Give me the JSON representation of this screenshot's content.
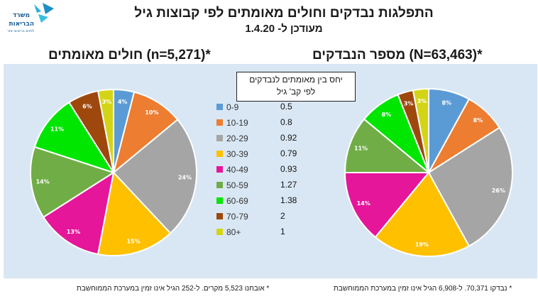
{
  "header": {
    "title": "התפלגות נבדקים וחולים מאומתים לפי קבוצות גיל",
    "subtitle": "מעודכן ל- 1.4.20",
    "logo_text_line1": "משרד",
    "logo_text_line2": "הבריאות",
    "logo_text_line3": "לחיים בריאים יותר"
  },
  "ratio_box": {
    "line1": "יחס בין מאומתים לנבדקים",
    "line2": "לפי קב' גיל"
  },
  "legend": [
    {
      "label": "0-9",
      "ratio": "0.5",
      "color": "#5b9bd5"
    },
    {
      "label": "10-19",
      "ratio": "0.8",
      "color": "#ed7d31"
    },
    {
      "label": "20-29",
      "ratio": "0.92",
      "color": "#a5a5a5"
    },
    {
      "label": "30-39",
      "ratio": "0.79",
      "color": "#ffc000"
    },
    {
      "label": "40-49",
      "ratio": "0.93",
      "color": "#e6169a"
    },
    {
      "label": "50-59",
      "ratio": "1.27",
      "color": "#70ad47"
    },
    {
      "label": "60-69",
      "ratio": "1.38",
      "color": "#00e600"
    },
    {
      "label": "70-79",
      "ratio": "2",
      "color": "#9e480e"
    },
    {
      "label": "80+",
      "ratio": "1",
      "color": "#d4d416"
    }
  ],
  "footnotes": {
    "left": "* אובחנו 5,523 מקרים. ל-252 הגיל אינו זמין במערכת הממוחשבת",
    "right": "* נבדקו 70,371. ל-6,908 הגיל אינו זמין במערכת הממוחשבת"
  },
  "chart_data": [
    {
      "type": "pie",
      "title": "חולים מאומתים (n=5,271)*",
      "categories": [
        "0-9",
        "10-19",
        "20-29",
        "30-39",
        "40-49",
        "50-59",
        "60-69",
        "70-79",
        "80+"
      ],
      "values": [
        4,
        10,
        24,
        15,
        13,
        14,
        11,
        6,
        3
      ],
      "value_labels": [
        "4%",
        "10%",
        "24%",
        "15%",
        "13%",
        "14%",
        "11%",
        "6%",
        "3%"
      ],
      "colors": [
        "#5b9bd5",
        "#ed7d31",
        "#a5a5a5",
        "#ffc000",
        "#e6169a",
        "#70ad47",
        "#00e600",
        "#9e480e",
        "#d4d416"
      ]
    },
    {
      "type": "pie",
      "title": "מספר הנבדקים (N=63,463)*",
      "categories": [
        "0-9",
        "10-19",
        "20-29",
        "30-39",
        "40-49",
        "50-59",
        "60-69",
        "70-79",
        "80+"
      ],
      "values": [
        8,
        8,
        26,
        19,
        14,
        11,
        8,
        3,
        3
      ],
      "value_labels": [
        "8%",
        "8%",
        "26%",
        "19%",
        "14%",
        "11%",
        "8%",
        "3%",
        "3%"
      ],
      "colors": [
        "#5b9bd5",
        "#ed7d31",
        "#a5a5a5",
        "#ffc000",
        "#e6169a",
        "#70ad47",
        "#00e600",
        "#9e480e",
        "#d4d416"
      ]
    }
  ]
}
